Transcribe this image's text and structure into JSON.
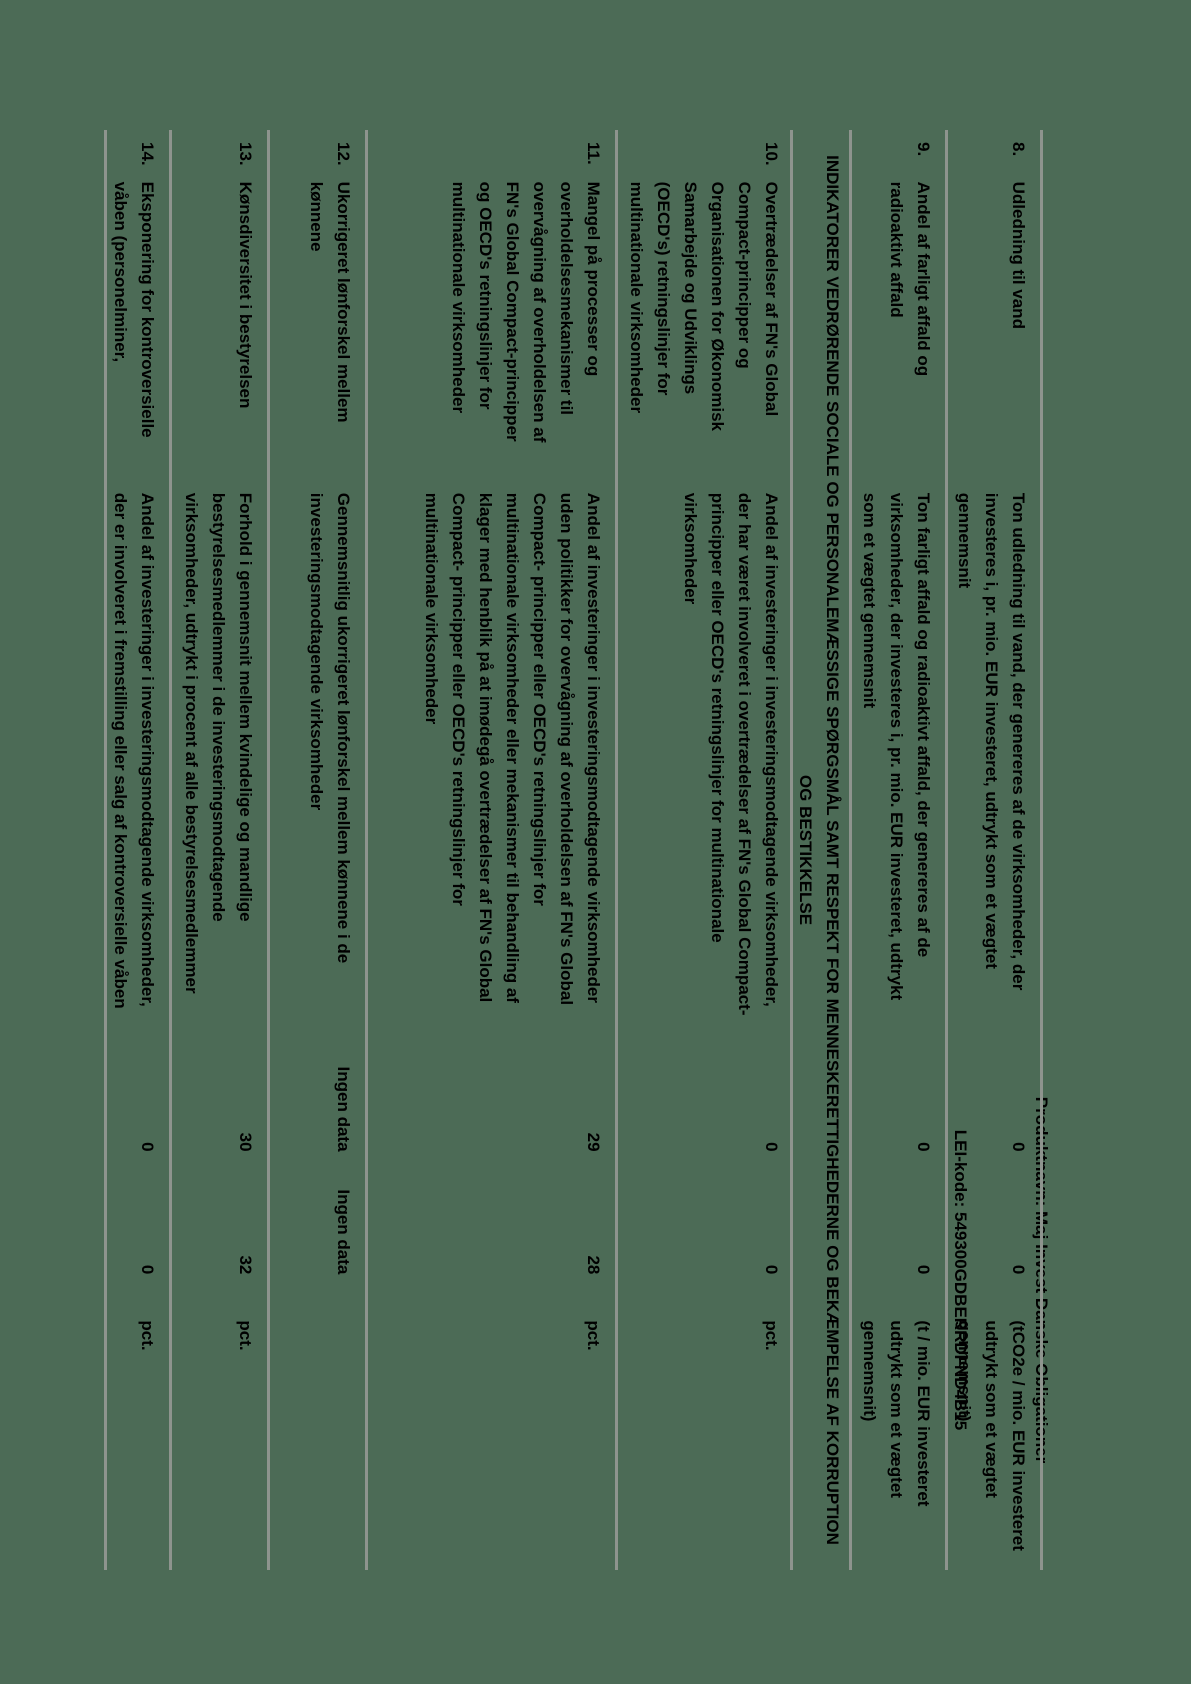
{
  "colors": {
    "page_background": "#4c6b56",
    "text": "#000000",
    "divider": "#8e948e"
  },
  "header": {
    "product_line": "Produktnavn: Maj Invest Danske Obligationer",
    "lei_line": "LEI-kode: 549300GDBERRDFND4B15"
  },
  "section_header": "INDIKATORER VEDRØRENDE SOCIALE OG PERSONALEMÆSSIGE SPØRGSMÅL SAMT RESPEKT FOR MENNESKERETTIGHEDERNE OG BEKÆMPELSE AF KORRUPTION\nOG BESTIKKELSE",
  "rows": [
    {
      "num": "8.",
      "label": "Udledning til vand",
      "desc": "Ton udledning til vand, der genereres af de virksomheder, der\ninvesteres i, pr. mio. EUR investeret, udtrykt som et vægtet\ngennemsnit",
      "val1": "0",
      "val2": "0",
      "unit": "(tCO2e / mio. EUR investeret\nudtrykt som et vægtet\ngennemsnit)"
    },
    {
      "num": "9.",
      "label": "Andel af farligt affald og\nradioaktivt affald",
      "desc": "Ton farligt affald og radioaktivt affald, der genereres af de\nvirksomheder, der investeres i, pr. mio. EUR investeret, udtrykt\nsom et vægtet gennemsnit",
      "val1": "0",
      "val2": "0",
      "unit": "(t / mio. EUR investeret\nudtrykt som et vægtet\ngennemsnit)"
    },
    {
      "num": "10.",
      "label": "Overtrædelser af FN's Global\nCompact-principper og\nOrganisationen for Økonomisk\nSamarbejde og Udviklings\n(OECD's) retningslinjer for\nmultinationale virksomheder",
      "desc": "Andel af investeringer i investeringsmodtagende virksomheder,\nder har været involveret i overtrædelser af FN's Global Compact-\nprincipper eller OECD's retningslinjer for multinationale\nvirksomheder",
      "val1": "0",
      "val2": "0",
      "unit": "pct."
    },
    {
      "num": "11.",
      "label": "Mangel på processer og\noverholdelsesmekanismer til\novervågning af overholdelsen af\nFN's Global Compact-principper\nog OECD's retningslinjer for\nmultinationale virksomheder",
      "desc": "Andel af investeringer i investeringsmodtagende virksomheder\nuden politikker for overvågning af overholdelsen af FN's Global\nCompact- principper eller OECD's retningslinjer for\nmultinationale virksomheder eller mekanismer til behandling af\nklager med henblik på at imødegå overtrædelser af FN's Global\nCompact- principper eller OECD's retningslinjer for\nmultinationale virksomheder",
      "val1": "29",
      "val2": "28",
      "unit": "pct."
    },
    {
      "num": "12.",
      "label": "Ukorrigeret lønforskel mellem\nkønnene",
      "desc": "Gennemsnitlig ukorrigeret lønforskel mellem kønnene i de\ninvesteringsmodtagende virksomheder",
      "val1": "Ingen data",
      "val2": "Ingen data",
      "unit": ""
    },
    {
      "num": "13.",
      "label": "Kønsdiversitet i bestyrelsen",
      "desc": "Forhold i gennemsnit mellem kvindelige og mandlige\nbestyrelsesmedlemmer i de investeringsmodtagende\nvirksomheder, udtrykt i procent af alle bestyrelsesmedlemmer",
      "val1": "30",
      "val2": "32",
      "unit": "pct."
    },
    {
      "num": "14.",
      "label": "Eksponering for kontroversielle\nvåben (personelminer,",
      "desc": "Andel af investeringer i investeringsmodtagende virksomheder,\nder er involveret i fremstilling eller salg af kontroversielle våben",
      "val1": "0",
      "val2": "0",
      "unit": "pct."
    }
  ]
}
